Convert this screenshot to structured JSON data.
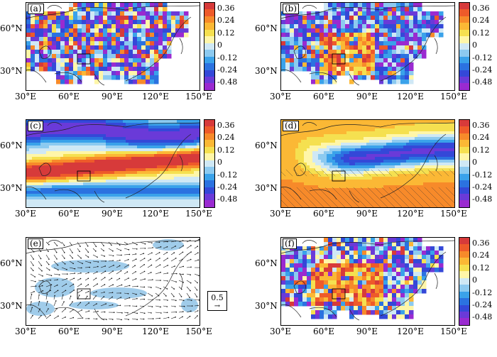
{
  "colorbar": {
    "labels": [
      "0.36",
      "0.24",
      "0.12",
      "0",
      "-0.12",
      "-0.24",
      "-0.48"
    ],
    "colors": [
      "#d73a3a",
      "#ee5a2a",
      "#f78a2a",
      "#fbb835",
      "#f5e050",
      "#fff6a8",
      "#cfe8f5",
      "#8ccaf0",
      "#3aa2ea",
      "#2b72e0",
      "#3448d8",
      "#6a3ad8",
      "#9a2ad0"
    ]
  },
  "axes": {
    "lon_labels": [
      "30°E",
      "60°E",
      "90°E",
      "120°E",
      "150°E"
    ],
    "lat_labels": [
      "60°N",
      "30°N"
    ]
  },
  "panels": [
    {
      "label": "(a)",
      "kind": "noise",
      "mode": "neg"
    },
    {
      "label": "(b)",
      "kind": "noise",
      "mode": "mix"
    },
    {
      "label": "(c)",
      "kind": "smooth",
      "mode": "c"
    },
    {
      "label": "(d)",
      "kind": "smooth",
      "mode": "d"
    },
    {
      "label": "(e)",
      "kind": "wind",
      "mode": "e"
    },
    {
      "label": "(f)",
      "kind": "noise",
      "mode": "mix2"
    }
  ],
  "vector_reference": {
    "value": "0.5"
  }
}
